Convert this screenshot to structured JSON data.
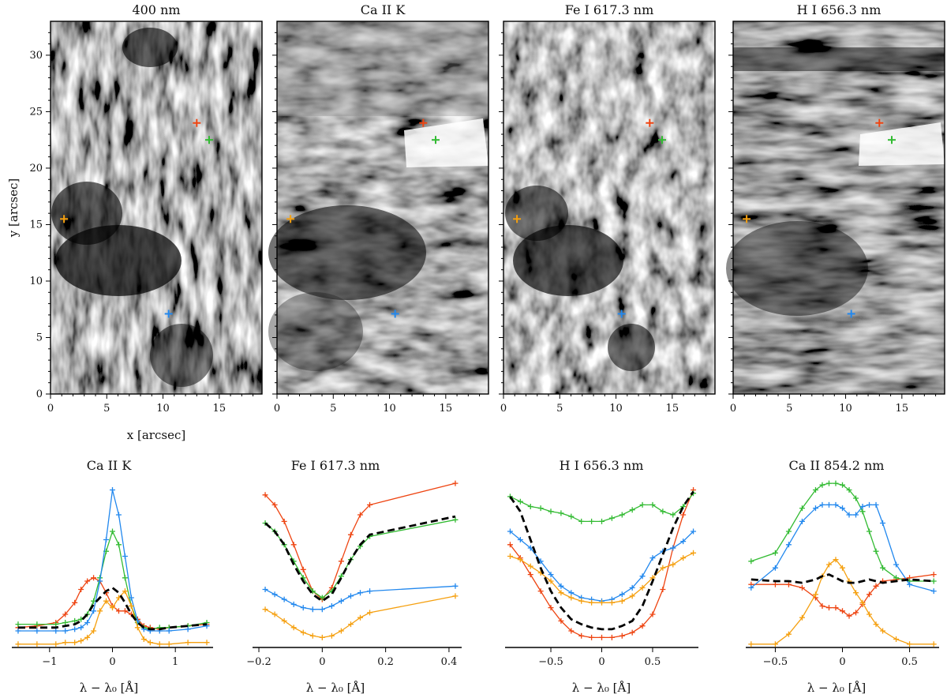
{
  "figure": {
    "image_panels": {
      "titles": [
        "400 nm",
        "Ca II K",
        "Fe I 617.3 nm",
        "H I 656.3 nm"
      ],
      "xlabel": "x [arcsec]",
      "ylabel": "y [arcsec]",
      "x_ticks": [
        "0",
        "5",
        "10",
        "15"
      ],
      "y_ticks": [
        "0",
        "5",
        "10",
        "15",
        "20",
        "25",
        "30"
      ]
    },
    "profile_panels": {
      "titles": [
        "Ca II K",
        "Fe I 617.3 nm",
        "H I 656.3 nm",
        "Ca II 854.2 nm"
      ],
      "xlabel": "λ − λ₀ [Å]"
    }
  },
  "colors": {
    "red": "#ee4411",
    "green": "#33bb33",
    "blue": "#2288ee",
    "orange": "#f5a010",
    "average": "#000000"
  },
  "chart_data": [
    {
      "type": "scatter",
      "title": "400 nm",
      "xlabel": "x [arcsec]",
      "ylabel": "y [arcsec]",
      "xlim": [
        0,
        18.8
      ],
      "ylim": [
        0,
        33
      ],
      "markers": [
        {
          "color": "red",
          "x": 13.0,
          "y": 24.0
        },
        {
          "color": "green",
          "x": 14.1,
          "y": 22.5
        },
        {
          "color": "orange",
          "x": 1.2,
          "y": 15.5
        },
        {
          "color": "blue",
          "x": 10.5,
          "y": 7.1
        }
      ]
    },
    {
      "type": "scatter",
      "title": "Ca II K",
      "xlim": [
        0,
        18.8
      ],
      "ylim": [
        0,
        33
      ],
      "markers": [
        {
          "color": "red",
          "x": 13.0,
          "y": 24.0
        },
        {
          "color": "green",
          "x": 14.1,
          "y": 22.5
        },
        {
          "color": "orange",
          "x": 1.2,
          "y": 15.5
        },
        {
          "color": "blue",
          "x": 10.5,
          "y": 7.1
        }
      ]
    },
    {
      "type": "scatter",
      "title": "Fe I 617.3 nm",
      "xlim": [
        0,
        18.8
      ],
      "ylim": [
        0,
        33
      ],
      "markers": [
        {
          "color": "red",
          "x": 13.0,
          "y": 24.0
        },
        {
          "color": "green",
          "x": 14.1,
          "y": 22.5
        },
        {
          "color": "orange",
          "x": 1.2,
          "y": 15.5
        },
        {
          "color": "blue",
          "x": 10.5,
          "y": 7.1
        }
      ]
    },
    {
      "type": "scatter",
      "title": "H I 656.3 nm",
      "xlim": [
        0,
        18.8
      ],
      "ylim": [
        0,
        33
      ],
      "markers": [
        {
          "color": "red",
          "x": 13.0,
          "y": 24.0
        },
        {
          "color": "green",
          "x": 14.1,
          "y": 22.5
        },
        {
          "color": "orange",
          "x": 1.2,
          "y": 15.5
        },
        {
          "color": "blue",
          "x": 10.5,
          "y": 7.1
        }
      ]
    },
    {
      "type": "line",
      "title": "Ca II K",
      "xlabel": "λ − λ₀ [Å]",
      "xlim": [
        -1.6,
        1.6
      ],
      "ylim": [
        0,
        1
      ],
      "x_ticks": [
        -1,
        0,
        1
      ],
      "x": [
        -1.5,
        -1.2,
        -0.9,
        -0.75,
        -0.6,
        -0.5,
        -0.4,
        -0.3,
        -0.2,
        -0.1,
        0.0,
        0.1,
        0.2,
        0.3,
        0.4,
        0.5,
        0.6,
        0.75,
        0.9,
        1.2,
        1.5
      ],
      "series": [
        {
          "color": "red",
          "values": [
            0.12,
            0.13,
            0.15,
            0.2,
            0.27,
            0.35,
            0.4,
            0.42,
            0.4,
            0.33,
            0.25,
            0.22,
            0.22,
            0.2,
            0.17,
            0.13,
            0.12,
            0.11,
            0.12,
            0.13,
            0.14
          ]
        },
        {
          "color": "green",
          "values": [
            0.14,
            0.14,
            0.14,
            0.15,
            0.16,
            0.17,
            0.2,
            0.28,
            0.42,
            0.58,
            0.7,
            0.62,
            0.42,
            0.25,
            0.15,
            0.12,
            0.11,
            0.12,
            0.12,
            0.13,
            0.15
          ]
        },
        {
          "color": "blue",
          "values": [
            0.1,
            0.1,
            0.1,
            0.1,
            0.11,
            0.12,
            0.15,
            0.22,
            0.4,
            0.65,
            0.95,
            0.8,
            0.55,
            0.3,
            0.16,
            0.11,
            0.1,
            0.1,
            0.1,
            0.11,
            0.13
          ]
        },
        {
          "color": "orange",
          "values": [
            0.02,
            0.02,
            0.02,
            0.03,
            0.03,
            0.04,
            0.06,
            0.1,
            0.22,
            0.28,
            0.24,
            0.3,
            0.34,
            0.25,
            0.12,
            0.05,
            0.03,
            0.02,
            0.02,
            0.03,
            0.03
          ]
        },
        {
          "color": "average",
          "dashed": true,
          "values": [
            0.12,
            0.12,
            0.12,
            0.13,
            0.14,
            0.16,
            0.2,
            0.26,
            0.3,
            0.34,
            0.36,
            0.33,
            0.27,
            0.2,
            0.15,
            0.12,
            0.11,
            0.11,
            0.12,
            0.13,
            0.14
          ]
        }
      ]
    },
    {
      "type": "line",
      "title": "Fe I 617.3 nm",
      "xlabel": "λ − λ₀ [Å]",
      "xlim": [
        -0.22,
        0.44
      ],
      "ylim": [
        0,
        1
      ],
      "x_ticks": [
        -0.2,
        0.0,
        0.2,
        0.4
      ],
      "x": [
        -0.18,
        -0.15,
        -0.12,
        -0.09,
        -0.06,
        -0.03,
        0.0,
        0.03,
        0.06,
        0.09,
        0.12,
        0.15,
        0.42
      ],
      "series": [
        {
          "color": "red",
          "values": [
            0.92,
            0.86,
            0.76,
            0.62,
            0.47,
            0.34,
            0.29,
            0.36,
            0.52,
            0.68,
            0.8,
            0.86,
            0.99
          ]
        },
        {
          "color": "green",
          "values": [
            0.75,
            0.7,
            0.62,
            0.52,
            0.42,
            0.34,
            0.3,
            0.34,
            0.43,
            0.53,
            0.61,
            0.67,
            0.77
          ]
        },
        {
          "color": "blue",
          "values": [
            0.35,
            0.32,
            0.29,
            0.26,
            0.24,
            0.23,
            0.23,
            0.25,
            0.28,
            0.31,
            0.33,
            0.34,
            0.37
          ]
        },
        {
          "color": "orange",
          "values": [
            0.23,
            0.2,
            0.16,
            0.12,
            0.09,
            0.07,
            0.06,
            0.07,
            0.1,
            0.14,
            0.18,
            0.21,
            0.31
          ]
        },
        {
          "color": "average",
          "dashed": true,
          "values": [
            0.75,
            0.7,
            0.62,
            0.5,
            0.4,
            0.32,
            0.28,
            0.32,
            0.42,
            0.53,
            0.62,
            0.68,
            0.79
          ]
        }
      ]
    },
    {
      "type": "line",
      "title": "H I 656.3 nm",
      "xlabel": "λ − λ₀ [Å]",
      "xlim": [
        -0.95,
        0.95
      ],
      "ylim": [
        0,
        1
      ],
      "x_ticks": [
        -0.5,
        0.0,
        0.5
      ],
      "x": [
        -0.9,
        -0.8,
        -0.7,
        -0.6,
        -0.5,
        -0.4,
        -0.3,
        -0.2,
        -0.1,
        0.0,
        0.1,
        0.2,
        0.3,
        0.4,
        0.5,
        0.6,
        0.7,
        0.8,
        0.9
      ],
      "series": [
        {
          "color": "red",
          "values": [
            0.62,
            0.54,
            0.44,
            0.34,
            0.24,
            0.16,
            0.1,
            0.07,
            0.06,
            0.06,
            0.06,
            0.07,
            0.09,
            0.13,
            0.2,
            0.35,
            0.6,
            0.8,
            0.95
          ]
        },
        {
          "color": "green",
          "values": [
            0.91,
            0.88,
            0.85,
            0.84,
            0.82,
            0.81,
            0.79,
            0.76,
            0.76,
            0.76,
            0.78,
            0.8,
            0.83,
            0.86,
            0.86,
            0.82,
            0.8,
            0.85,
            0.93
          ]
        },
        {
          "color": "blue",
          "values": [
            0.7,
            0.65,
            0.6,
            0.52,
            0.44,
            0.37,
            0.33,
            0.3,
            0.29,
            0.28,
            0.29,
            0.32,
            0.36,
            0.43,
            0.54,
            0.58,
            0.6,
            0.64,
            0.7
          ]
        },
        {
          "color": "orange",
          "values": [
            0.55,
            0.53,
            0.49,
            0.45,
            0.4,
            0.33,
            0.3,
            0.28,
            0.27,
            0.27,
            0.27,
            0.28,
            0.31,
            0.36,
            0.42,
            0.48,
            0.5,
            0.54,
            0.57
          ]
        },
        {
          "color": "average",
          "dashed": true,
          "values": [
            0.91,
            0.82,
            0.65,
            0.48,
            0.34,
            0.24,
            0.17,
            0.14,
            0.12,
            0.11,
            0.11,
            0.13,
            0.16,
            0.25,
            0.4,
            0.56,
            0.72,
            0.85,
            0.94
          ]
        }
      ]
    },
    {
      "type": "line",
      "title": "Ca II 854.2 nm",
      "xlabel": "λ − λ₀ [Å]",
      "xlim": [
        -0.72,
        0.72
      ],
      "ylim": [
        0,
        1
      ],
      "x_ticks": [
        -0.5,
        0.0,
        0.5
      ],
      "x": [
        -0.68,
        -0.5,
        -0.4,
        -0.3,
        -0.2,
        -0.15,
        -0.1,
        -0.05,
        0.0,
        0.05,
        0.1,
        0.15,
        0.2,
        0.25,
        0.3,
        0.4,
        0.5,
        0.68
      ],
      "series": [
        {
          "color": "red",
          "values": [
            0.38,
            0.38,
            0.38,
            0.36,
            0.3,
            0.25,
            0.24,
            0.24,
            0.22,
            0.19,
            0.21,
            0.26,
            0.32,
            0.37,
            0.4,
            0.41,
            0.42,
            0.44
          ]
        },
        {
          "color": "green",
          "values": [
            0.52,
            0.57,
            0.7,
            0.84,
            0.95,
            0.98,
            0.99,
            0.99,
            0.98,
            0.95,
            0.9,
            0.82,
            0.7,
            0.58,
            0.48,
            0.42,
            0.4,
            0.4
          ]
        },
        {
          "color": "blue",
          "values": [
            0.36,
            0.48,
            0.62,
            0.76,
            0.84,
            0.86,
            0.86,
            0.86,
            0.84,
            0.8,
            0.8,
            0.85,
            0.86,
            0.86,
            0.75,
            0.5,
            0.38,
            0.34
          ]
        },
        {
          "color": "orange",
          "values": [
            0.02,
            0.02,
            0.08,
            0.18,
            0.32,
            0.43,
            0.5,
            0.53,
            0.48,
            0.4,
            0.33,
            0.27,
            0.2,
            0.14,
            0.1,
            0.05,
            0.02,
            0.02
          ]
        },
        {
          "color": "average",
          "dashed": true,
          "values": [
            0.41,
            0.4,
            0.4,
            0.39,
            0.41,
            0.43,
            0.44,
            0.42,
            0.4,
            0.39,
            0.39,
            0.4,
            0.41,
            0.4,
            0.39,
            0.4,
            0.41,
            0.4
          ]
        }
      ]
    }
  ]
}
